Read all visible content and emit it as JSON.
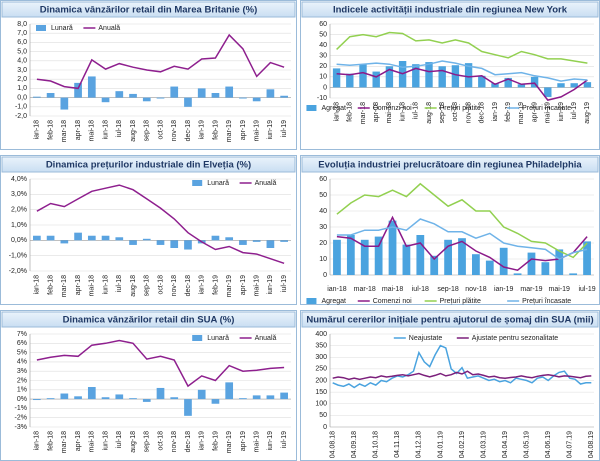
{
  "chart_data": [
    {
      "type": "combo",
      "title": "Dinamica vânzărilor retail din Marea Britanie (%)",
      "legend": "top-left",
      "grid": true,
      "categories": [
        "ian-18",
        "feb-18",
        "mar-18",
        "apr-18",
        "mai-18",
        "iun-18",
        "iul-18",
        "aug-18",
        "sep-18",
        "oct-18",
        "nov-18",
        "dec-18",
        "ian-19",
        "feb-19",
        "mar-19",
        "apr-19",
        "mai-19",
        "iun-19",
        "iul-19"
      ],
      "series": [
        {
          "name": "Lunară",
          "kind": "bar",
          "color": "#5aa3e0",
          "values": [
            0.1,
            0.5,
            -1.3,
            1.6,
            2.3,
            -0.5,
            0.7,
            0.4,
            -0.4,
            -0.1,
            1.2,
            -1.0,
            1.0,
            0.5,
            1.2,
            -0.1,
            -0.4,
            0.9,
            0.2
          ]
        },
        {
          "name": "Anuală",
          "kind": "line",
          "color": "#8e1f8e",
          "values": [
            2.0,
            1.8,
            1.2,
            1.0,
            4.1,
            3.1,
            3.7,
            3.3,
            3.0,
            2.8,
            3.4,
            3.1,
            4.2,
            4.3,
            6.8,
            5.3,
            2.3,
            3.8,
            3.3
          ]
        }
      ],
      "ylim": [
        -2,
        8
      ],
      "yticks": [
        {
          "value": -2,
          "label": "-2,0"
        },
        {
          "value": -1,
          "label": "-1,0"
        },
        {
          "value": 0,
          "label": "0,0"
        },
        {
          "value": 1,
          "label": "1,0"
        },
        {
          "value": 2,
          "label": "2,0"
        },
        {
          "value": 3,
          "label": "3,0"
        },
        {
          "value": 4,
          "label": "4,0"
        },
        {
          "value": 5,
          "label": "5,0"
        },
        {
          "value": 6,
          "label": "6,0"
        },
        {
          "value": 7,
          "label": "7,0"
        },
        {
          "value": 8,
          "label": "8,0"
        }
      ]
    },
    {
      "type": "combo",
      "title": "Indicele activității industriale din regiunea New York",
      "legend": "bottom",
      "grid": true,
      "categories": [
        "ian-18",
        "feb-18",
        "mar-18",
        "apr-18",
        "mai-18",
        "iun-18",
        "iul-18",
        "aug-18",
        "sep-18",
        "oct-18",
        "nov-18",
        "dec-18",
        "ian-19",
        "feb-19",
        "mar-19",
        "apr-19",
        "mai-19",
        "iun-19",
        "iul-19",
        "aug-19"
      ],
      "series": [
        {
          "name": "Agregat",
          "kind": "bar",
          "color": "#4aa3df",
          "values": [
            18,
            13,
            22,
            15,
            20,
            25,
            22,
            24,
            20,
            21,
            23,
            11,
            4,
            9,
            3,
            10,
            -9,
            4,
            4,
            5
          ]
        },
        {
          "name": "Comenzi noi",
          "kind": "line",
          "color": "#8b1a89",
          "values": [
            13,
            12,
            14,
            10,
            17,
            13,
            18,
            15,
            16,
            12,
            10,
            11,
            3,
            8,
            3,
            4,
            -12,
            -9,
            -2,
            7
          ]
        },
        {
          "name": "Prețuri plătite",
          "kind": "line",
          "color": "#92d050",
          "values": [
            36,
            48,
            50,
            48,
            52,
            51,
            44,
            45,
            42,
            45,
            42,
            34,
            31,
            28,
            34,
            31,
            27,
            27,
            25,
            23
          ]
        },
        {
          "name": "Prețuri încasate",
          "kind": "line",
          "color": "#6fb3e8",
          "values": [
            22,
            21,
            22,
            23,
            22,
            19,
            20,
            22,
            25,
            23,
            20,
            18,
            12,
            13,
            14,
            11,
            9,
            6,
            8,
            7
          ]
        }
      ],
      "ylim": [
        -10,
        60
      ],
      "yticks": [
        -10,
        0,
        10,
        20,
        30,
        40,
        50,
        60
      ]
    },
    {
      "type": "combo",
      "title": "Dinamica prețurilor industriale din Elveția (%)",
      "legend": "top-right",
      "grid": true,
      "categories": [
        "ian-18",
        "feb-18",
        "mar-18",
        "apr-18",
        "mai-18",
        "iun-18",
        "iul-18",
        "aug-18",
        "sep-18",
        "oct-18",
        "nov-18",
        "dec-18",
        "ian-19",
        "feb-19",
        "mar-19",
        "apr-19",
        "mai-19",
        "iun-19",
        "iul-19"
      ],
      "series": [
        {
          "name": "Lunară",
          "kind": "bar",
          "color": "#5aa3e0",
          "values": [
            0.3,
            0.3,
            -0.2,
            0.5,
            0.3,
            0.3,
            0.2,
            -0.3,
            0.1,
            -0.3,
            -0.5,
            -0.6,
            -0.2,
            0.3,
            0.2,
            -0.3,
            -0.1,
            -0.5,
            -0.1
          ]
        },
        {
          "name": "Anuală",
          "kind": "line",
          "color": "#8e1f8e",
          "values": [
            1.9,
            2.4,
            2.2,
            2.7,
            3.2,
            3.4,
            3.6,
            3.3,
            2.7,
            2.1,
            1.4,
            0.5,
            -0.1,
            -0.6,
            -0.4,
            -0.8,
            -0.9,
            -1.2,
            -1.5
          ]
        }
      ],
      "ylim": [
        -2,
        4
      ],
      "yticks": [
        {
          "value": -2,
          "label": "-2,0%"
        },
        {
          "value": -1,
          "label": "-1,0%"
        },
        {
          "value": 0,
          "label": "0,0%"
        },
        {
          "value": 1,
          "label": "1,0%"
        },
        {
          "value": 2,
          "label": "2,0%"
        },
        {
          "value": 3,
          "label": "3,0%"
        },
        {
          "value": 4,
          "label": "4,0%"
        }
      ]
    },
    {
      "type": "combo",
      "title": "Evoluția industriei prelucrătoare din regiunea Philadelphia",
      "legend": "bottom",
      "grid": true,
      "categories": [
        "ian-18",
        null,
        "mar-18",
        null,
        "mai-18",
        null,
        "iul-18",
        null,
        "sep-18",
        null,
        "nov-18",
        null,
        "ian-19",
        null,
        "mar-19",
        null,
        "mai-19",
        null,
        "iul-19"
      ],
      "series": [
        {
          "name": "Agregat",
          "kind": "bar",
          "color": "#4aa3df",
          "values": [
            22,
            25,
            22,
            24,
            34,
            19,
            25,
            12,
            22,
            23,
            13,
            9,
            17,
            1,
            14,
            8,
            16,
            1,
            21
          ]
        },
        {
          "name": "Comenzi noi",
          "kind": "line",
          "color": "#8b1a89",
          "values": [
            24,
            23,
            18,
            18,
            36,
            18,
            20,
            10,
            18,
            21,
            15,
            11,
            5,
            3,
            10,
            9,
            10,
            14,
            24
          ]
        },
        {
          "name": "Prețuri plătite",
          "kind": "line",
          "color": "#92d050",
          "values": [
            38,
            45,
            50,
            49,
            53,
            49,
            57,
            50,
            43,
            47,
            40,
            40,
            30,
            26,
            21,
            20,
            15,
            11,
            20
          ]
        },
        {
          "name": "Prețuri încasate",
          "kind": "line",
          "color": "#6fb3e8",
          "values": [
            25,
            25,
            28,
            28,
            30,
            28,
            35,
            32,
            27,
            27,
            23,
            26,
            20,
            18,
            17,
            16,
            10,
            14,
            16
          ]
        }
      ],
      "ylim": [
        0,
        60
      ],
      "yticks": [
        0,
        10,
        20,
        30,
        40,
        50,
        60
      ]
    },
    {
      "type": "combo",
      "title": "Dinamica vânzărilor retail din SUA (%)",
      "legend": "top-right",
      "grid": true,
      "categories": [
        "ian-18",
        "feb-18",
        "mar-18",
        "apr-18",
        "mai-18",
        "iun-18",
        "iul-18",
        "aug-18",
        "sep-18",
        "oct-18",
        "nov-18",
        "dec-18",
        "ian-19",
        "feb-19",
        "mar-19",
        "apr-19",
        "mai-19",
        "iun-19",
        "iul-19"
      ],
      "series": [
        {
          "name": "Lunară",
          "kind": "bar",
          "color": "#5aa3e0",
          "values": [
            -0.1,
            0.1,
            0.6,
            0.3,
            1.3,
            0.2,
            0.5,
            0.1,
            -0.3,
            1.2,
            0.2,
            -1.8,
            1.0,
            -0.5,
            1.8,
            0.1,
            0.4,
            0.4,
            0.7
          ]
        },
        {
          "name": "Anuală",
          "kind": "line",
          "color": "#8e1f8e",
          "values": [
            4.2,
            4.5,
            4.7,
            4.6,
            5.8,
            6.0,
            6.3,
            6.0,
            4.3,
            4.6,
            4.2,
            1.4,
            2.5,
            2.0,
            3.6,
            3.0,
            3.1,
            3.3,
            3.4
          ]
        }
      ],
      "ylim": [
        -3,
        7
      ],
      "yticks": [
        {
          "value": -3,
          "label": "-3%"
        },
        {
          "value": -2,
          "label": "-2%"
        },
        {
          "value": -1,
          "label": "-1%"
        },
        {
          "value": 0,
          "label": "0%"
        },
        {
          "value": 1,
          "label": "1%"
        },
        {
          "value": 2,
          "label": "2%"
        },
        {
          "value": 3,
          "label": "3%"
        },
        {
          "value": 4,
          "label": "4%"
        },
        {
          "value": 5,
          "label": "5%"
        },
        {
          "value": 6,
          "label": "6%"
        },
        {
          "value": 7,
          "label": "7%"
        }
      ]
    },
    {
      "type": "line",
      "title": "Numărul cererilor inițiale pentru ajutorul de șomaj din SUA (mii)",
      "legend": "top-right",
      "grid": true,
      "categories": [
        "04.08.18",
        null,
        null,
        null,
        "04.09.18",
        null,
        null,
        null,
        "04.10.18",
        null,
        null,
        null,
        "04.11.18",
        null,
        null,
        null,
        "04.12.18",
        null,
        null,
        null,
        "04.01.19",
        null,
        null,
        null,
        "04.02.19",
        null,
        null,
        null,
        "04.03.19",
        null,
        null,
        null,
        "04.04.19",
        null,
        null,
        null,
        "04.05.19",
        null,
        null,
        null,
        "04.06.19",
        null,
        null,
        null,
        "04.07.19",
        null,
        null,
        null,
        "04.08.19"
      ],
      "series": [
        {
          "name": "Neajustate",
          "kind": "line",
          "color": "#4aa3df",
          "values": [
            190,
            180,
            175,
            185,
            170,
            185,
            175,
            190,
            180,
            200,
            195,
            210,
            220,
            215,
            225,
            240,
            320,
            280,
            260,
            310,
            350,
            340,
            250,
            230,
            255,
            210,
            215,
            220,
            210,
            200,
            205,
            195,
            200,
            190,
            210,
            205,
            200,
            190,
            210,
            215,
            200,
            220,
            235,
            240,
            210,
            205,
            185,
            190,
            190
          ]
        },
        {
          "name": "Ajustate pentru sezonalitate",
          "kind": "line",
          "color": "#7b1f7b",
          "values": [
            210,
            215,
            212,
            205,
            210,
            205,
            210,
            215,
            212,
            220,
            215,
            218,
            222,
            225,
            220,
            225,
            230,
            222,
            216,
            222,
            230,
            220,
            225,
            235,
            228,
            240,
            225,
            228,
            222,
            215,
            218,
            212,
            210,
            213,
            215,
            220,
            215,
            212,
            218,
            222,
            225,
            221,
            216,
            220,
            218,
            215,
            212,
            218,
            220
          ]
        }
      ],
      "ylim": [
        0,
        400
      ],
      "yticks": [
        0,
        50,
        100,
        150,
        200,
        250,
        300,
        350,
        400
      ]
    }
  ]
}
